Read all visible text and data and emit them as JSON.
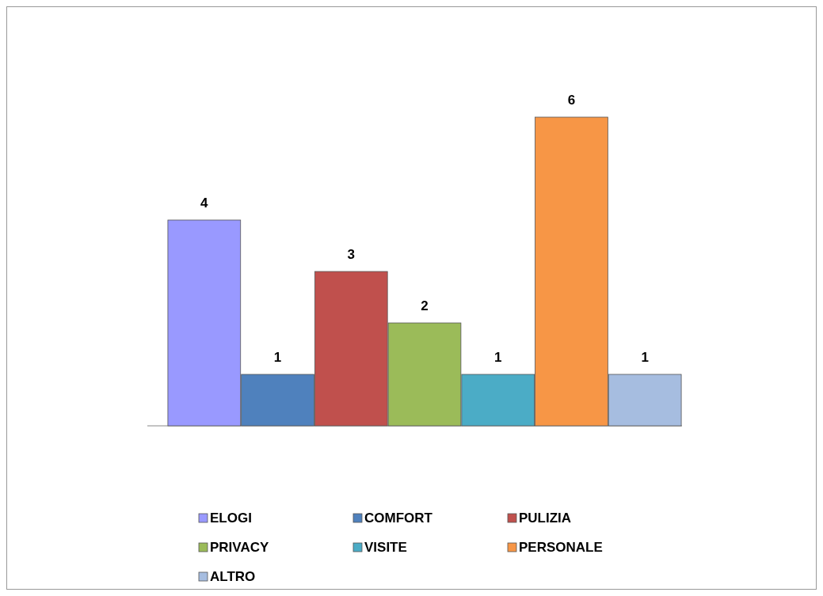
{
  "chart_data": {
    "type": "bar",
    "categories": [
      null
    ],
    "series": [
      {
        "name": "ELOGI",
        "color": "#9999ff",
        "values": [
          4
        ]
      },
      {
        "name": "COMFORT",
        "color": "#4f81bd",
        "values": [
          1
        ]
      },
      {
        "name": "PULIZIA",
        "color": "#c0504d",
        "values": [
          3
        ]
      },
      {
        "name": "PRIVACY",
        "color": "#9bbb59",
        "values": [
          2
        ]
      },
      {
        "name": "VISITE",
        "color": "#4bacc6",
        "values": [
          1
        ]
      },
      {
        "name": "PERSONALE",
        "color": "#f79646",
        "values": [
          6
        ]
      },
      {
        "name": "ALTRO",
        "color": "#a6bde0",
        "values": [
          1
        ]
      }
    ],
    "data_labels": true,
    "legend": "bottom"
  }
}
